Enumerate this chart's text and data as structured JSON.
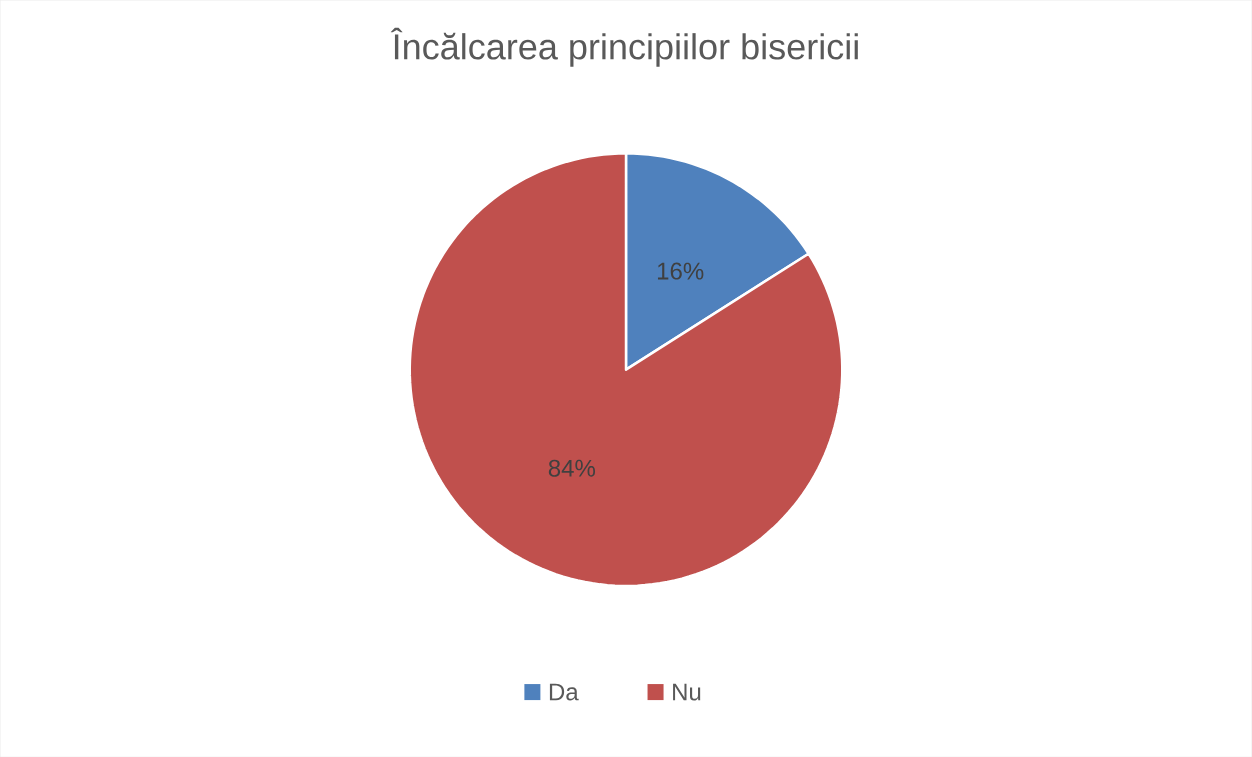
{
  "chart_data": {
    "type": "pie",
    "title": "Încălcarea principiilor bisericii",
    "categories": [
      "Da",
      "Nu"
    ],
    "values": [
      16,
      84
    ],
    "colors": [
      "#4f81bd",
      "#c0504d"
    ],
    "value_labels": [
      "16%",
      "84%"
    ],
    "legend": "bottom"
  }
}
